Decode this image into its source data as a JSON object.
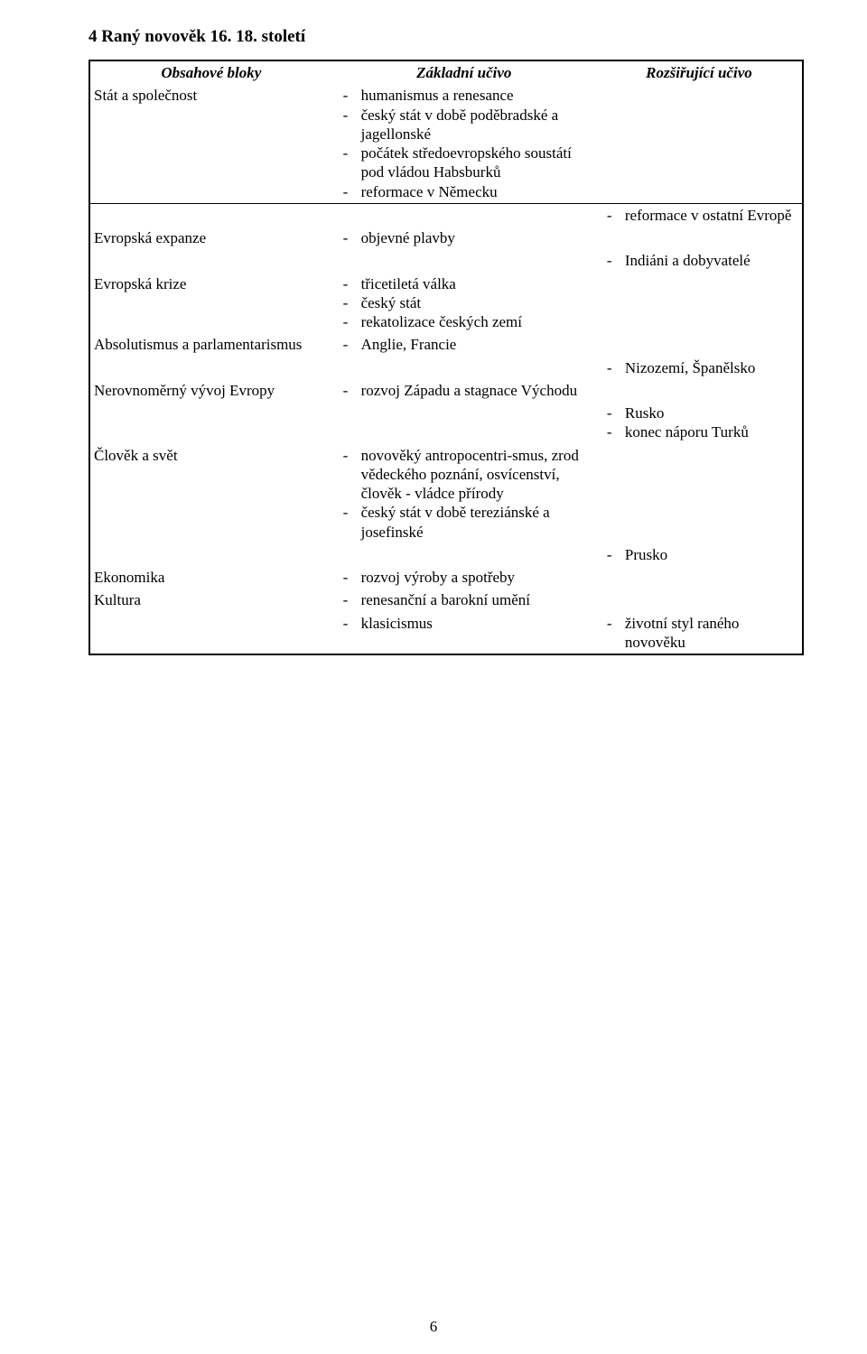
{
  "heading": "4   Raný novověk 16.  18. století",
  "columns": {
    "c1": "Obsahové bloky",
    "c2": "Základní učivo",
    "c3": "Rozšiřující učivo"
  },
  "rows": [
    {
      "c1": "Stát a společnost",
      "c2": [
        "humanismus a renesance",
        "český stát v době poděbradské a jagellonské",
        "počátek středoevropského soustátí pod vládou Habsburků",
        "reformace v Německu"
      ],
      "c3": []
    },
    {
      "c1": "",
      "c2": [],
      "c3": [
        "reformace v ostatní Evropě"
      ]
    },
    {
      "c1": "Evropská expanze",
      "c2": [
        "objevné plavby"
      ],
      "c3": []
    },
    {
      "c1": "",
      "c2": [],
      "c3": [
        "Indiáni a dobyvatelé"
      ]
    },
    {
      "c1": "Evropská krize",
      "c2": [
        "třicetiletá válka",
        "český stát",
        "rekatolizace českých zemí"
      ],
      "c3": []
    },
    {
      "c1": "Absolutismus a parlamentarismus",
      "c2": [
        "Anglie, Francie"
      ],
      "c3": []
    },
    {
      "c1": "",
      "c2": [],
      "c3": [
        "Nizozemí, Španělsko"
      ]
    },
    {
      "c1": "Nerovnoměrný vývoj Evropy",
      "c2": [
        "rozvoj Západu a stagnace Východu"
      ],
      "c3": []
    },
    {
      "c1": "",
      "c2": [],
      "c3": [
        "Rusko",
        "konec náporu Turků"
      ]
    },
    {
      "c1": "Člověk a svět",
      "c2": [
        "novověký antropocentri-smus, zrod vědeckého poznání, osvícenství, člověk - vládce přírody",
        "český stát v době tereziánské a josefinské"
      ],
      "c3": []
    },
    {
      "c1": "",
      "c2": [],
      "c3": [
        "Prusko"
      ]
    },
    {
      "c1": "Ekonomika",
      "c2": [
        "rozvoj výroby a spotřeby"
      ],
      "c3": []
    },
    {
      "c1": "Kultura",
      "c2": [
        "renesanční a barokní umění"
      ],
      "c3": []
    },
    {
      "c1": "",
      "c2": [
        "klasicismus"
      ],
      "c3": [
        "životní styl raného novověku"
      ]
    }
  ],
  "pageNumber": "6"
}
